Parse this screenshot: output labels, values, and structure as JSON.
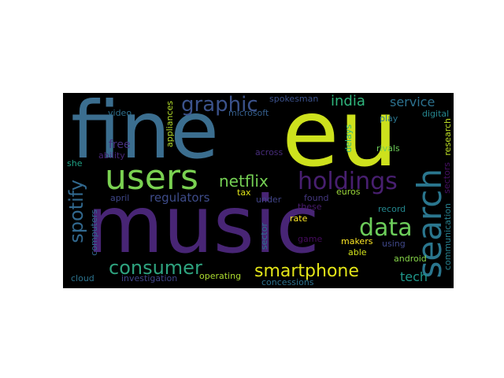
{
  "cloud": {
    "words": [
      {
        "text": "fine",
        "color": "#3b6e8f"
      },
      {
        "text": "eu",
        "color": "#cde11d"
      },
      {
        "text": "music",
        "color": "#482575"
      },
      {
        "text": "search",
        "color": "#2a768e"
      },
      {
        "text": "users",
        "color": "#7ad151"
      },
      {
        "text": "graphic",
        "color": "#3b528b"
      },
      {
        "text": "holdings",
        "color": "#481f70"
      },
      {
        "text": "data",
        "color": "#6ccd5a"
      },
      {
        "text": "spotify",
        "color": "#31688e"
      },
      {
        "text": "consumer",
        "color": "#2ea37f"
      },
      {
        "text": "smartphone",
        "color": "#e2e418"
      },
      {
        "text": "netflix",
        "color": "#75d054"
      },
      {
        "text": "india",
        "color": "#2fb47c"
      },
      {
        "text": "service",
        "color": "#2c718e"
      },
      {
        "text": "regulators",
        "color": "#3e4c8a"
      },
      {
        "text": "tech",
        "color": "#1f978b"
      },
      {
        "text": "free",
        "color": "#46307e"
      },
      {
        "text": "spokesman",
        "color": "#3b518b"
      },
      {
        "text": "microsoft",
        "color": "#355f8d"
      },
      {
        "text": "video",
        "color": "#2d708e"
      },
      {
        "text": "digital",
        "color": "#25858e"
      },
      {
        "text": "play",
        "color": "#2b758e"
      },
      {
        "text": "appliances",
        "color": "#b5de2b"
      },
      {
        "text": "ability",
        "color": "#482677"
      },
      {
        "text": "delays",
        "color": "#31b57b"
      },
      {
        "text": "research",
        "color": "#bddf26"
      },
      {
        "text": "she",
        "color": "#20a386"
      },
      {
        "text": "across",
        "color": "#472c7a"
      },
      {
        "text": "rivals",
        "color": "#6ece58"
      },
      {
        "text": "april",
        "color": "#3f4788"
      },
      {
        "text": "tax",
        "color": "#dfe318"
      },
      {
        "text": "under",
        "color": "#414487"
      },
      {
        "text": "found",
        "color": "#453882"
      },
      {
        "text": "these",
        "color": "#481b6d"
      },
      {
        "text": "euros",
        "color": "#9dd93b"
      },
      {
        "text": "sector",
        "color": "#2c728e"
      },
      {
        "text": "rate",
        "color": "#fde725"
      },
      {
        "text": "game",
        "color": "#460b5e"
      },
      {
        "text": "record",
        "color": "#24878e"
      },
      {
        "text": "makers",
        "color": "#fde725"
      },
      {
        "text": "using",
        "color": "#3f4889"
      },
      {
        "text": "able",
        "color": "#d2e21b"
      },
      {
        "text": "android",
        "color": "#86d549"
      },
      {
        "text": "communication",
        "color": "#27808e"
      },
      {
        "text": "sectors",
        "color": "#471063"
      },
      {
        "text": "computers",
        "color": "#31688e"
      },
      {
        "text": "cloud",
        "color": "#2c738e"
      },
      {
        "text": "investigation",
        "color": "#404588"
      },
      {
        "text": "operating",
        "color": "#addc30"
      },
      {
        "text": "concessions",
        "color": "#2d718e"
      }
    ]
  }
}
